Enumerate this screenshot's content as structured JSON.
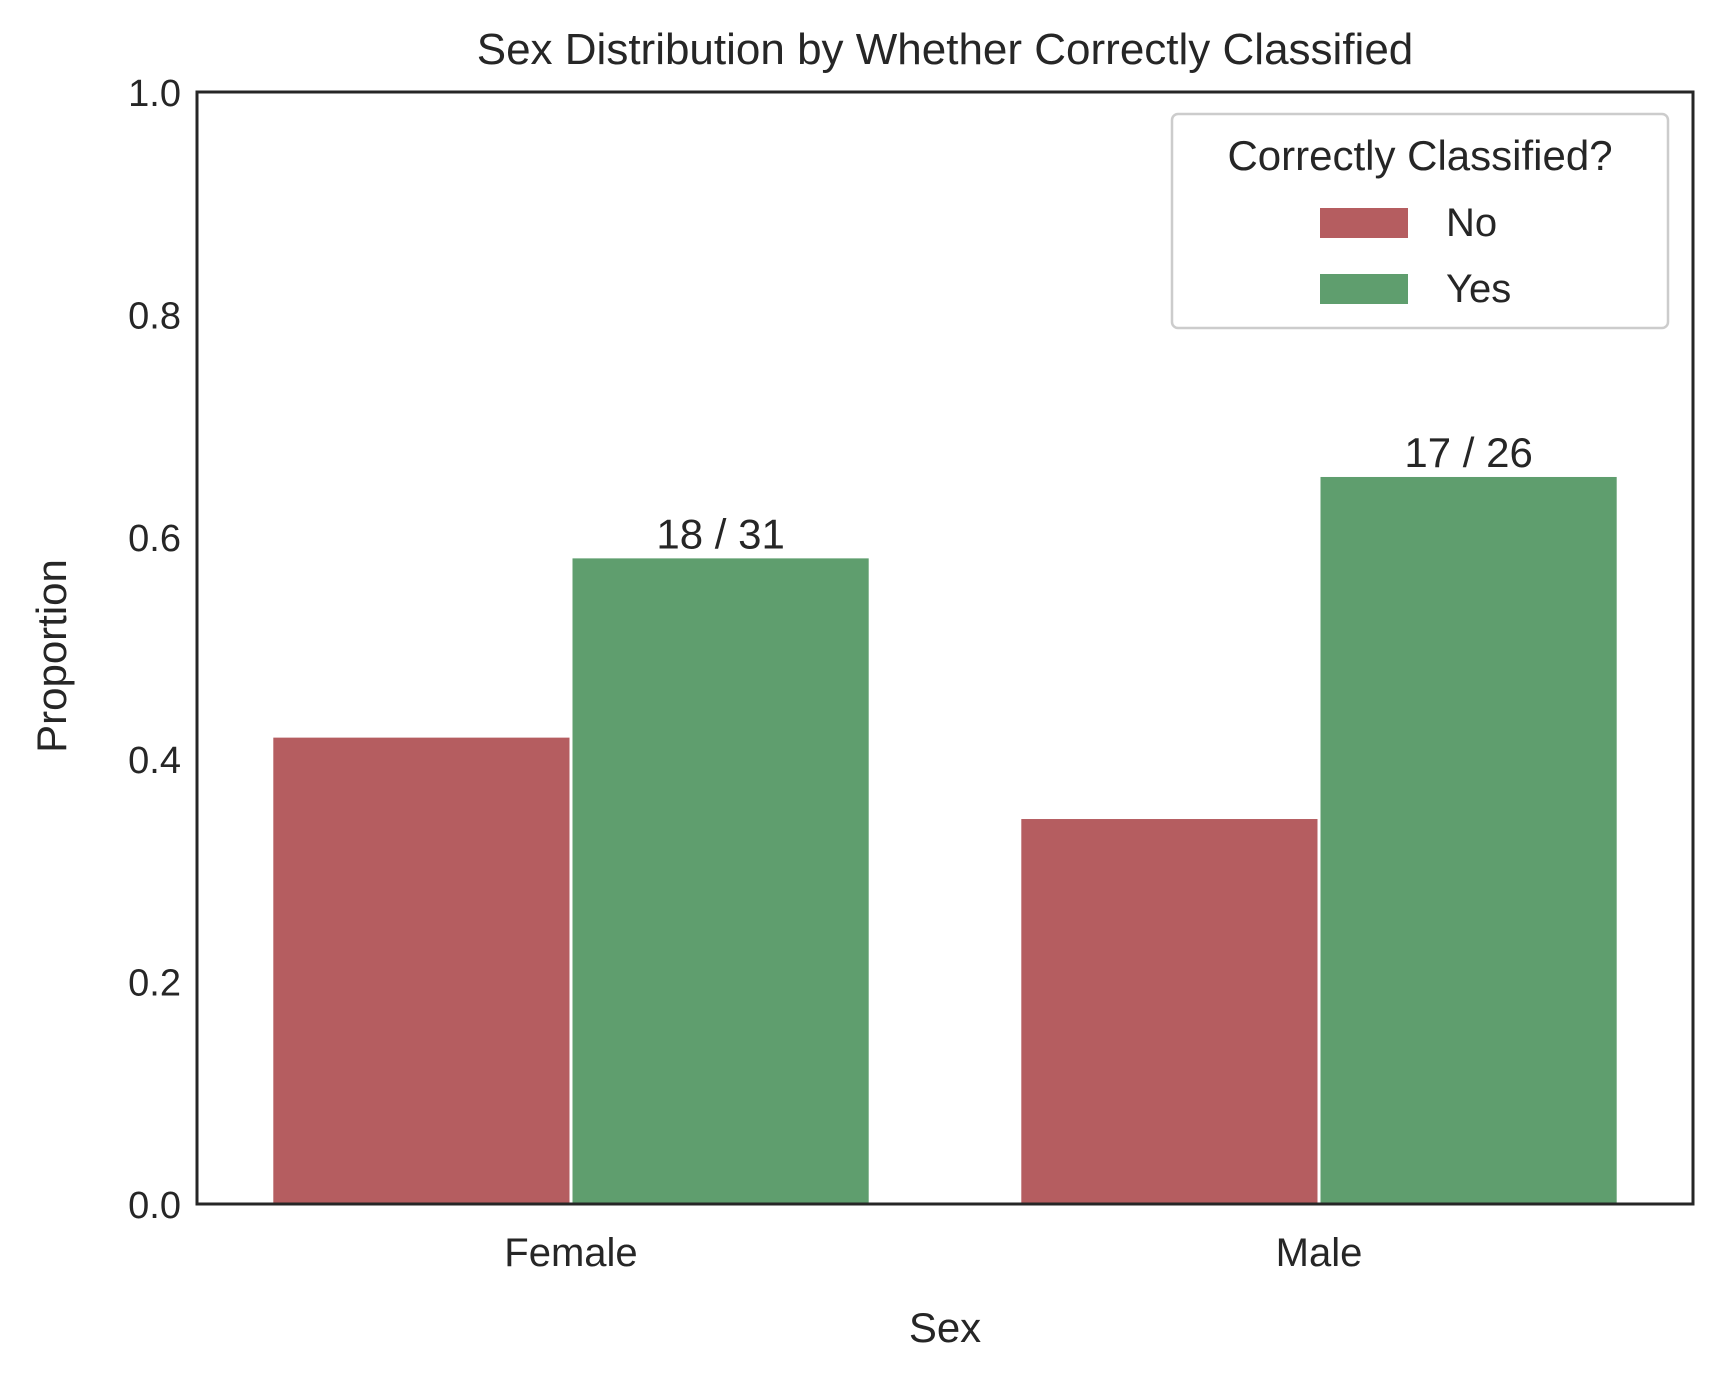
{
  "chart_data": {
    "type": "bar",
    "title": "Sex Distribution by Whether Correctly Classified",
    "xlabel": "Sex",
    "ylabel": "Proportion",
    "categories": [
      "Female",
      "Male"
    ],
    "ylim": [
      0,
      1.0
    ],
    "yticks": [
      "0.0",
      "0.2",
      "0.4",
      "0.6",
      "0.8",
      "1.0"
    ],
    "grid": false,
    "legend": {
      "title": "Correctly Classified?",
      "placement": "top-right"
    },
    "series": [
      {
        "name": "No",
        "color": "#b55d60",
        "values": [
          0.4194,
          0.3462
        ],
        "labels": [
          "",
          ""
        ]
      },
      {
        "name": "Yes",
        "color": "#5f9e6e",
        "values": [
          0.5806,
          0.6538
        ],
        "labels": [
          "18 / 31",
          "17 / 26"
        ]
      }
    ]
  }
}
